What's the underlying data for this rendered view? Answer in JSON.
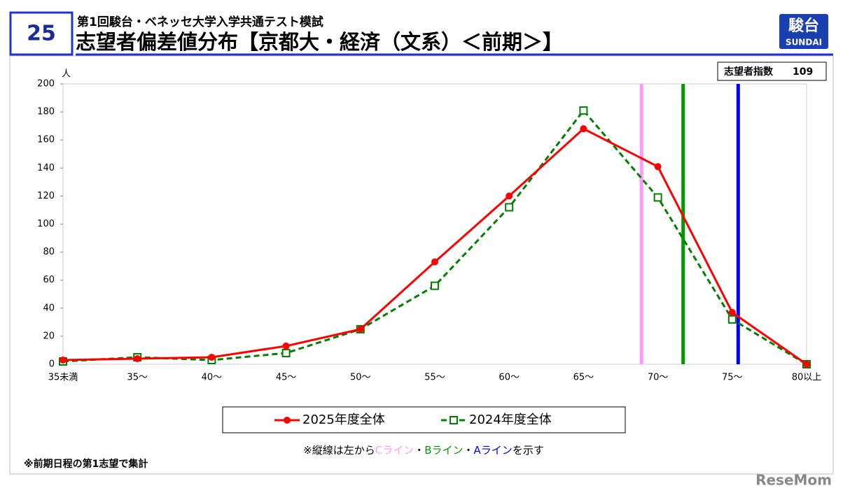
{
  "header": {
    "badge": "25",
    "subtitle": "第1回駿台・ベネッセ大学入学共通テスト模試",
    "title": "志望者偏差値分布【京都大・経済（文系）＜前期＞】",
    "logo_top": "駿台",
    "logo_bottom": "SUNDAI"
  },
  "index_box": {
    "label": "志望者指数",
    "value": "109"
  },
  "chart_data": {
    "type": "line",
    "y_unit": "人",
    "categories": [
      "35未満",
      "35～",
      "40～",
      "45～",
      "50～",
      "55～",
      "60～",
      "65～",
      "70～",
      "75～",
      "80以上"
    ],
    "series": [
      {
        "name": "2025年度全体",
        "color": "#ff0000",
        "marker": "circle",
        "dashed": false,
        "values": [
          3,
          4,
          5,
          13,
          25,
          73,
          120,
          168,
          141,
          37,
          0
        ]
      },
      {
        "name": "2024年度全体",
        "color": "#008000",
        "marker": "square",
        "dashed": true,
        "values": [
          2,
          5,
          3,
          8,
          25,
          56,
          112,
          181,
          119,
          32,
          0
        ]
      }
    ],
    "ylim": [
      0,
      200
    ],
    "yticks": [
      0,
      20,
      40,
      60,
      80,
      100,
      120,
      140,
      160,
      180,
      200
    ],
    "reference_lines": [
      {
        "label": "Cライン",
        "color": "#ff99ff",
        "x": 68.9
      },
      {
        "label": "Bライン",
        "color": "#009900",
        "x": 71.7
      },
      {
        "label": "Aライン",
        "color": "#0000ff",
        "x": 75.4
      }
    ],
    "note_prefix": "※縦線は左から",
    "note_separator": "・",
    "note_suffix": "を示す"
  },
  "footnote": "※前期日程の第1志望で集計",
  "watermark": "ReseMom"
}
